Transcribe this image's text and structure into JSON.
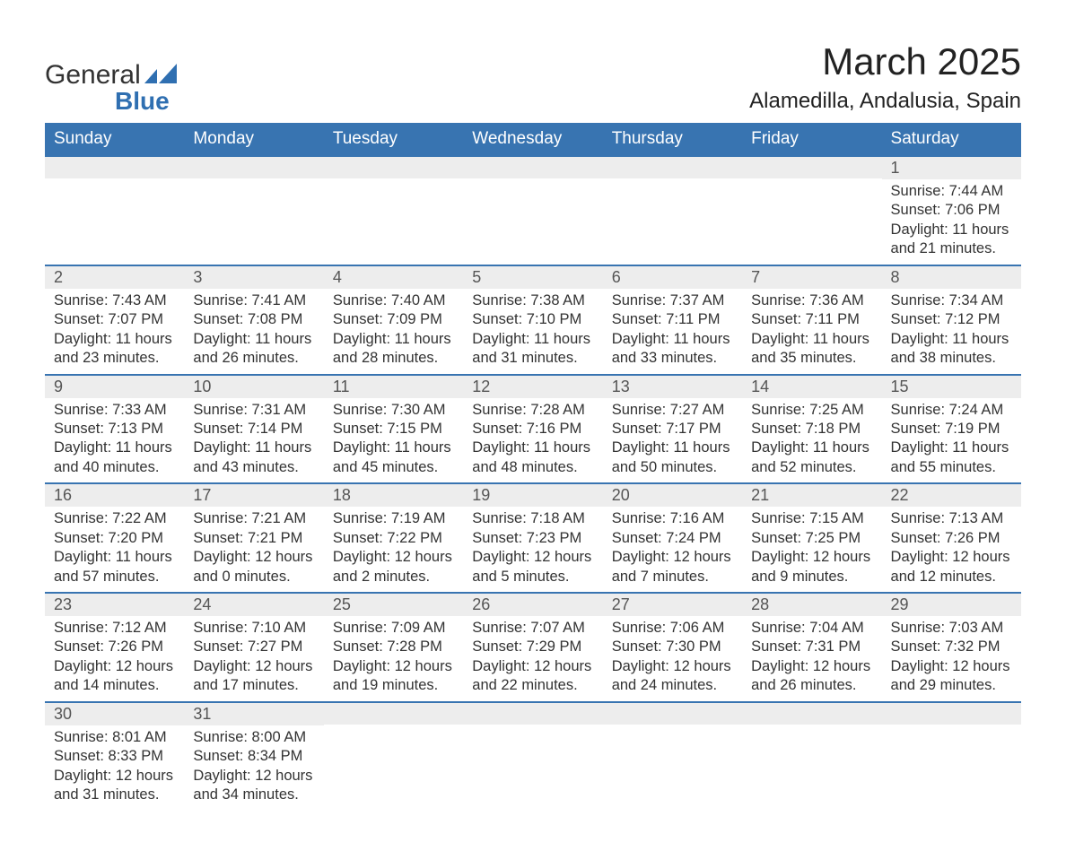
{
  "colors": {
    "header_bg": "#3874b1",
    "header_text": "#ffffff",
    "daynum_bg": "#ededed",
    "daynum_text": "#555555",
    "body_text": "#333333",
    "row_border": "#3874b1",
    "logo_blue": "#2f6fb1",
    "page_bg": "#ffffff"
  },
  "typography": {
    "month_title_pt": 42,
    "location_pt": 24,
    "th_pt": 19,
    "daynum_pt": 18,
    "daytext_pt": 16.5,
    "font_family": "Arial, Helvetica, sans-serif"
  },
  "logo": {
    "line1": "General",
    "line2": "Blue"
  },
  "title": "March 2025",
  "location": "Alamedilla, Andalusia, Spain",
  "day_headers": [
    "Sunday",
    "Monday",
    "Tuesday",
    "Wednesday",
    "Thursday",
    "Friday",
    "Saturday"
  ],
  "labels": {
    "sunrise": "Sunrise:",
    "sunset": "Sunset:",
    "daylight": "Daylight:"
  },
  "weeks": [
    [
      null,
      null,
      null,
      null,
      null,
      null,
      {
        "n": "1",
        "sunrise": "7:44 AM",
        "sunset": "7:06 PM",
        "daylight": "11 hours and 21 minutes."
      }
    ],
    [
      {
        "n": "2",
        "sunrise": "7:43 AM",
        "sunset": "7:07 PM",
        "daylight": "11 hours and 23 minutes."
      },
      {
        "n": "3",
        "sunrise": "7:41 AM",
        "sunset": "7:08 PM",
        "daylight": "11 hours and 26 minutes."
      },
      {
        "n": "4",
        "sunrise": "7:40 AM",
        "sunset": "7:09 PM",
        "daylight": "11 hours and 28 minutes."
      },
      {
        "n": "5",
        "sunrise": "7:38 AM",
        "sunset": "7:10 PM",
        "daylight": "11 hours and 31 minutes."
      },
      {
        "n": "6",
        "sunrise": "7:37 AM",
        "sunset": "7:11 PM",
        "daylight": "11 hours and 33 minutes."
      },
      {
        "n": "7",
        "sunrise": "7:36 AM",
        "sunset": "7:11 PM",
        "daylight": "11 hours and 35 minutes."
      },
      {
        "n": "8",
        "sunrise": "7:34 AM",
        "sunset": "7:12 PM",
        "daylight": "11 hours and 38 minutes."
      }
    ],
    [
      {
        "n": "9",
        "sunrise": "7:33 AM",
        "sunset": "7:13 PM",
        "daylight": "11 hours and 40 minutes."
      },
      {
        "n": "10",
        "sunrise": "7:31 AM",
        "sunset": "7:14 PM",
        "daylight": "11 hours and 43 minutes."
      },
      {
        "n": "11",
        "sunrise": "7:30 AM",
        "sunset": "7:15 PM",
        "daylight": "11 hours and 45 minutes."
      },
      {
        "n": "12",
        "sunrise": "7:28 AM",
        "sunset": "7:16 PM",
        "daylight": "11 hours and 48 minutes."
      },
      {
        "n": "13",
        "sunrise": "7:27 AM",
        "sunset": "7:17 PM",
        "daylight": "11 hours and 50 minutes."
      },
      {
        "n": "14",
        "sunrise": "7:25 AM",
        "sunset": "7:18 PM",
        "daylight": "11 hours and 52 minutes."
      },
      {
        "n": "15",
        "sunrise": "7:24 AM",
        "sunset": "7:19 PM",
        "daylight": "11 hours and 55 minutes."
      }
    ],
    [
      {
        "n": "16",
        "sunrise": "7:22 AM",
        "sunset": "7:20 PM",
        "daylight": "11 hours and 57 minutes."
      },
      {
        "n": "17",
        "sunrise": "7:21 AM",
        "sunset": "7:21 PM",
        "daylight": "12 hours and 0 minutes."
      },
      {
        "n": "18",
        "sunrise": "7:19 AM",
        "sunset": "7:22 PM",
        "daylight": "12 hours and 2 minutes."
      },
      {
        "n": "19",
        "sunrise": "7:18 AM",
        "sunset": "7:23 PM",
        "daylight": "12 hours and 5 minutes."
      },
      {
        "n": "20",
        "sunrise": "7:16 AM",
        "sunset": "7:24 PM",
        "daylight": "12 hours and 7 minutes."
      },
      {
        "n": "21",
        "sunrise": "7:15 AM",
        "sunset": "7:25 PM",
        "daylight": "12 hours and 9 minutes."
      },
      {
        "n": "22",
        "sunrise": "7:13 AM",
        "sunset": "7:26 PM",
        "daylight": "12 hours and 12 minutes."
      }
    ],
    [
      {
        "n": "23",
        "sunrise": "7:12 AM",
        "sunset": "7:26 PM",
        "daylight": "12 hours and 14 minutes."
      },
      {
        "n": "24",
        "sunrise": "7:10 AM",
        "sunset": "7:27 PM",
        "daylight": "12 hours and 17 minutes."
      },
      {
        "n": "25",
        "sunrise": "7:09 AM",
        "sunset": "7:28 PM",
        "daylight": "12 hours and 19 minutes."
      },
      {
        "n": "26",
        "sunrise": "7:07 AM",
        "sunset": "7:29 PM",
        "daylight": "12 hours and 22 minutes."
      },
      {
        "n": "27",
        "sunrise": "7:06 AM",
        "sunset": "7:30 PM",
        "daylight": "12 hours and 24 minutes."
      },
      {
        "n": "28",
        "sunrise": "7:04 AM",
        "sunset": "7:31 PM",
        "daylight": "12 hours and 26 minutes."
      },
      {
        "n": "29",
        "sunrise": "7:03 AM",
        "sunset": "7:32 PM",
        "daylight": "12 hours and 29 minutes."
      }
    ],
    [
      {
        "n": "30",
        "sunrise": "8:01 AM",
        "sunset": "8:33 PM",
        "daylight": "12 hours and 31 minutes."
      },
      {
        "n": "31",
        "sunrise": "8:00 AM",
        "sunset": "8:34 PM",
        "daylight": "12 hours and 34 minutes."
      },
      null,
      null,
      null,
      null,
      null
    ]
  ]
}
